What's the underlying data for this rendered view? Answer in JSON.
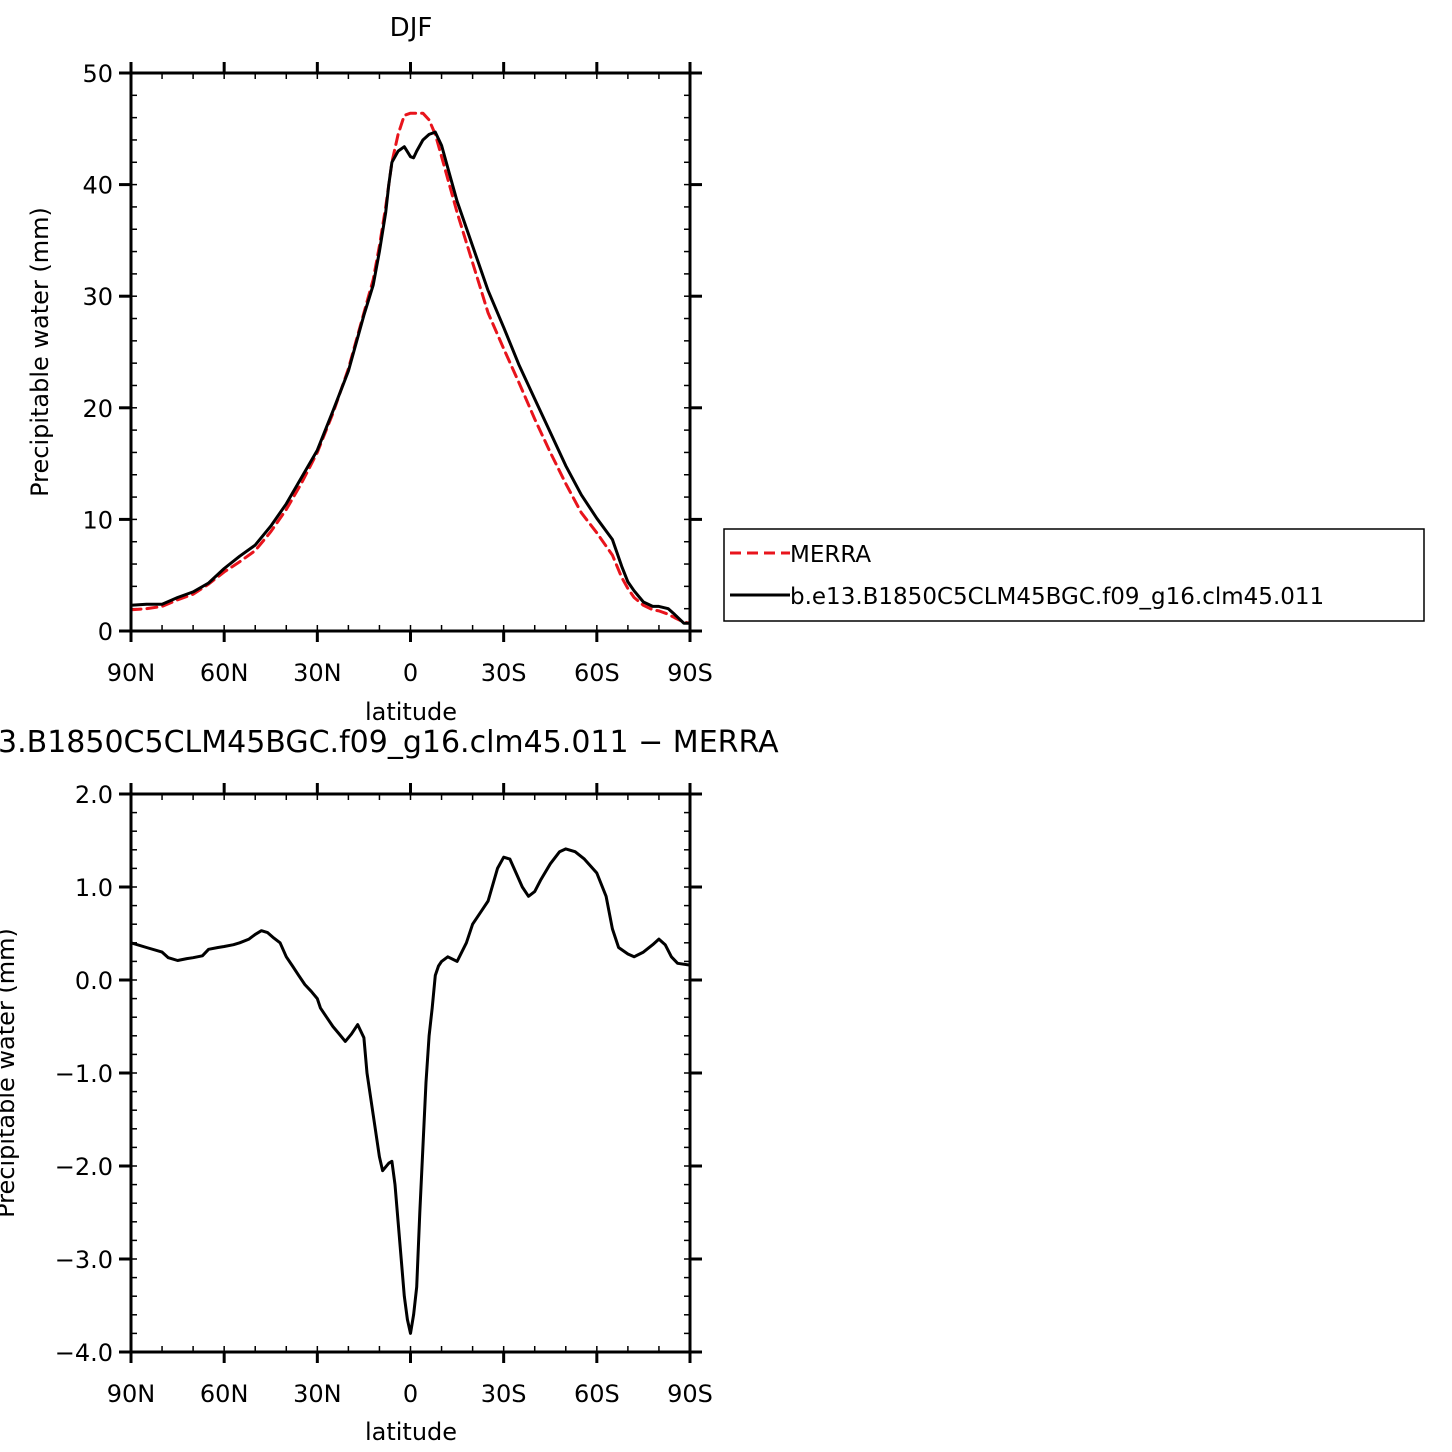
{
  "chart_data": [
    {
      "type": "line",
      "title": "DJF",
      "xlabel": "latitude",
      "ylabel": "Precipitable water (mm)",
      "xlim": [
        90,
        -90
      ],
      "ylim": [
        0,
        50
      ],
      "x_ticks": [
        {
          "value": 90,
          "label": "90N"
        },
        {
          "value": 60,
          "label": "60N"
        },
        {
          "value": 30,
          "label": "30N"
        },
        {
          "value": 0,
          "label": "0"
        },
        {
          "value": -30,
          "label": "30S"
        },
        {
          "value": -60,
          "label": "60S"
        },
        {
          "value": -90,
          "label": "90S"
        }
      ],
      "y_ticks": [
        {
          "value": 0,
          "label": "0"
        },
        {
          "value": 10,
          "label": "10"
        },
        {
          "value": 20,
          "label": "20"
        },
        {
          "value": 30,
          "label": "30"
        },
        {
          "value": 40,
          "label": "40"
        },
        {
          "value": 50,
          "label": "50"
        }
      ],
      "legend": "right",
      "series": [
        {
          "name": "MERRA",
          "color": "#e8141c",
          "dash": "dashed",
          "points": [
            [
              90,
              1.9
            ],
            [
              85,
              2.0
            ],
            [
              80,
              2.2
            ],
            [
              75,
              2.8
            ],
            [
              70,
              3.3
            ],
            [
              65,
              4.2
            ],
            [
              60,
              5.3
            ],
            [
              55,
              6.2
            ],
            [
              50,
              7.2
            ],
            [
              45,
              8.9
            ],
            [
              40,
              10.9
            ],
            [
              35,
              13.3
            ],
            [
              30,
              16.0
            ],
            [
              25,
              19.5
            ],
            [
              20,
              23.5
            ],
            [
              15,
              28.5
            ],
            [
              12,
              31.5
            ],
            [
              10,
              34.5
            ],
            [
              8,
              38.0
            ],
            [
              6,
              42.0
            ],
            [
              4,
              44.5
            ],
            [
              2,
              46.2
            ],
            [
              0,
              46.4
            ],
            [
              -2,
              46.4
            ],
            [
              -4,
              46.4
            ],
            [
              -6,
              45.8
            ],
            [
              -8,
              44.5
            ],
            [
              -10,
              42.5
            ],
            [
              -15,
              37.5
            ],
            [
              -20,
              33.0
            ],
            [
              -25,
              28.5
            ],
            [
              -30,
              25.3
            ],
            [
              -35,
              22.2
            ],
            [
              -40,
              19.0
            ],
            [
              -45,
              16.0
            ],
            [
              -50,
              13.2
            ],
            [
              -55,
              10.6
            ],
            [
              -60,
              8.8
            ],
            [
              -65,
              6.8
            ],
            [
              -68,
              4.8
            ],
            [
              -70,
              3.8
            ],
            [
              -72,
              3.0
            ],
            [
              -75,
              2.3
            ],
            [
              -78,
              1.9
            ],
            [
              -80,
              1.8
            ],
            [
              -83,
              1.5
            ],
            [
              -85,
              1.2
            ],
            [
              -88,
              0.8
            ],
            [
              -90,
              0.7
            ]
          ]
        },
        {
          "name": "b.e13.B1850C5CLM45BGC.f09_g16.clm45.011",
          "color": "#000000",
          "dash": "solid",
          "points": [
            [
              90,
              2.3
            ],
            [
              85,
              2.4
            ],
            [
              80,
              2.4
            ],
            [
              75,
              3.0
            ],
            [
              70,
              3.5
            ],
            [
              65,
              4.3
            ],
            [
              60,
              5.6
            ],
            [
              55,
              6.7
            ],
            [
              50,
              7.7
            ],
            [
              45,
              9.4
            ],
            [
              40,
              11.4
            ],
            [
              35,
              13.8
            ],
            [
              30,
              16.2
            ],
            [
              25,
              19.7
            ],
            [
              20,
              23.3
            ],
            [
              15,
              28.3
            ],
            [
              12,
              31.0
            ],
            [
              10,
              34.0
            ],
            [
              8,
              37.5
            ],
            [
              7,
              40.0
            ],
            [
              6,
              42.0
            ],
            [
              4,
              43.0
            ],
            [
              2,
              43.4
            ],
            [
              0,
              42.5
            ],
            [
              -1,
              42.4
            ],
            [
              -2,
              43.0
            ],
            [
              -4,
              44.0
            ],
            [
              -6,
              44.5
            ],
            [
              -8,
              44.7
            ],
            [
              -10,
              43.5
            ],
            [
              -12,
              41.5
            ],
            [
              -15,
              38.5
            ],
            [
              -20,
              34.5
            ],
            [
              -25,
              30.5
            ],
            [
              -30,
              27.2
            ],
            [
              -35,
              23.8
            ],
            [
              -40,
              20.8
            ],
            [
              -45,
              17.8
            ],
            [
              -50,
              14.8
            ],
            [
              -55,
              12.2
            ],
            [
              -60,
              10.1
            ],
            [
              -65,
              8.2
            ],
            [
              -68,
              5.8
            ],
            [
              -70,
              4.4
            ],
            [
              -72,
              3.6
            ],
            [
              -75,
              2.6
            ],
            [
              -78,
              2.2
            ],
            [
              -80,
              2.2
            ],
            [
              -83,
              2.0
            ],
            [
              -85,
              1.5
            ],
            [
              -88,
              0.7
            ],
            [
              -90,
              0.7
            ]
          ]
        }
      ]
    },
    {
      "type": "line",
      "title": "3.B1850C5CLM45BGC.f09_g16.clm45.011  −  MERRA",
      "xlabel": "latitude",
      "ylabel": "Precipitable water (mm)",
      "xlim": [
        90,
        -90
      ],
      "ylim": [
        -4.0,
        2.0
      ],
      "x_ticks": [
        {
          "value": 90,
          "label": "90N"
        },
        {
          "value": 60,
          "label": "60N"
        },
        {
          "value": 30,
          "label": "30N"
        },
        {
          "value": 0,
          "label": "0"
        },
        {
          "value": -30,
          "label": "30S"
        },
        {
          "value": -60,
          "label": "60S"
        },
        {
          "value": -90,
          "label": "90S"
        }
      ],
      "y_ticks": [
        {
          "value": 2.0,
          "label": "2.0"
        },
        {
          "value": 1.0,
          "label": "1.0"
        },
        {
          "value": 0.0,
          "label": "0.0"
        },
        {
          "value": -1.0,
          "label": "−1.0"
        },
        {
          "value": -2.0,
          "label": "−2.0"
        },
        {
          "value": -3.0,
          "label": "−3.0"
        },
        {
          "value": -4.0,
          "label": "−4.0"
        }
      ],
      "series": [
        {
          "color": "#000000",
          "dash": "solid",
          "points": [
            [
              90,
              0.4
            ],
            [
              85,
              0.35
            ],
            [
              80,
              0.3
            ],
            [
              78,
              0.24
            ],
            [
              75,
              0.21
            ],
            [
              72,
              0.23
            ],
            [
              70,
              0.24
            ],
            [
              67,
              0.26
            ],
            [
              65,
              0.33
            ],
            [
              62,
              0.35
            ],
            [
              60,
              0.36
            ],
            [
              57,
              0.38
            ],
            [
              55,
              0.4
            ],
            [
              52,
              0.44
            ],
            [
              50,
              0.49
            ],
            [
              48,
              0.53
            ],
            [
              46,
              0.51
            ],
            [
              44,
              0.45
            ],
            [
              42,
              0.4
            ],
            [
              40,
              0.25
            ],
            [
              38,
              0.15
            ],
            [
              36,
              0.05
            ],
            [
              34,
              -0.05
            ],
            [
              32,
              -0.12
            ],
            [
              30,
              -0.2
            ],
            [
              29,
              -0.3
            ],
            [
              27,
              -0.4
            ],
            [
              25,
              -0.5
            ],
            [
              23,
              -0.58
            ],
            [
              21,
              -0.66
            ],
            [
              19,
              -0.58
            ],
            [
              17,
              -0.48
            ],
            [
              15,
              -0.62
            ],
            [
              14,
              -1.0
            ],
            [
              12,
              -1.45
            ],
            [
              10,
              -1.9
            ],
            [
              9,
              -2.05
            ],
            [
              7,
              -1.97
            ],
            [
              6,
              -1.95
            ],
            [
              5,
              -2.2
            ],
            [
              4,
              -2.6
            ],
            [
              3,
              -3.0
            ],
            [
              2,
              -3.4
            ],
            [
              1,
              -3.65
            ],
            [
              0,
              -3.8
            ],
            [
              -1,
              -3.6
            ],
            [
              -2,
              -3.3
            ],
            [
              -3,
              -2.5
            ],
            [
              -4,
              -1.8
            ],
            [
              -5,
              -1.1
            ],
            [
              -6,
              -0.6
            ],
            [
              -7,
              -0.3
            ],
            [
              -8,
              0.05
            ],
            [
              -9,
              0.15
            ],
            [
              -10,
              0.2
            ],
            [
              -12,
              0.25
            ],
            [
              -15,
              0.2
            ],
            [
              -18,
              0.4
            ],
            [
              -20,
              0.6
            ],
            [
              -23,
              0.75
            ],
            [
              -25,
              0.85
            ],
            [
              -28,
              1.2
            ],
            [
              -30,
              1.32
            ],
            [
              -32,
              1.3
            ],
            [
              -34,
              1.15
            ],
            [
              -36,
              1.0
            ],
            [
              -38,
              0.9
            ],
            [
              -40,
              0.95
            ],
            [
              -42,
              1.08
            ],
            [
              -45,
              1.25
            ],
            [
              -48,
              1.38
            ],
            [
              -50,
              1.41
            ],
            [
              -53,
              1.38
            ],
            [
              -56,
              1.3
            ],
            [
              -60,
              1.15
            ],
            [
              -63,
              0.9
            ],
            [
              -65,
              0.55
            ],
            [
              -67,
              0.35
            ],
            [
              -70,
              0.28
            ],
            [
              -72,
              0.25
            ],
            [
              -75,
              0.3
            ],
            [
              -78,
              0.38
            ],
            [
              -80,
              0.44
            ],
            [
              -82,
              0.38
            ],
            [
              -84,
              0.25
            ],
            [
              -86,
              0.18
            ],
            [
              -90,
              0.16
            ]
          ]
        }
      ]
    }
  ],
  "colors": {
    "axis": "#000000",
    "merra": "#e8141c",
    "model": "#000000"
  }
}
